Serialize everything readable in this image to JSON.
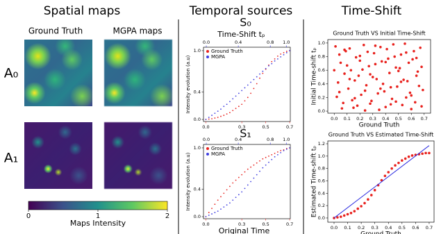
{
  "sections": {
    "spatial": "Spatial maps",
    "temporal": "Temporal sources",
    "timeshift": "Time-Shift"
  },
  "spatial_maps": {
    "columns": [
      "Ground Truth",
      "MGPA maps"
    ],
    "rows": [
      "A₀",
      "A₁"
    ]
  },
  "chart_data": [
    {
      "type": "colorbar",
      "xlabel": "Maps Intensity",
      "xlim": [
        0,
        2
      ],
      "xticks": [
        0,
        1,
        2
      ],
      "colors": [
        "#440154",
        "#3b528b",
        "#21918c",
        "#5ec962",
        "#fde725"
      ]
    },
    {
      "type": "line",
      "title": "S₀",
      "x2label": "Time-Shift tₚ",
      "ylabel": "Intensity evolution (a.u)",
      "legend": "upper left",
      "xcolor": "#e8211d",
      "x2color": "#2b2be0",
      "x": [
        0,
        0.025,
        0.05,
        0.075,
        0.1,
        0.125,
        0.15,
        0.175,
        0.2,
        0.225,
        0.25,
        0.275,
        0.3,
        0.325,
        0.35,
        0.375,
        0.4,
        0.425,
        0.45,
        0.475,
        0.5,
        0.525,
        0.55,
        0.575,
        0.6,
        0.625,
        0.65,
        0.675,
        0.7
      ],
      "xlim": [
        -0.02,
        0.705
      ],
      "xticks": [
        {
          "value": 0,
          "label": "0.0"
        },
        0.3,
        0.5,
        0.7
      ],
      "x2lim": [
        -0.035,
        1.05
      ],
      "x2ticks": [
        {
          "value": 0,
          "label": "0.0"
        },
        0.4,
        0.8,
        {
          "value": 1,
          "label": "1.0"
        }
      ],
      "ylim": [
        -0.03,
        1.05
      ],
      "yticks": [
        {
          "value": 0,
          "label": "0.0"
        },
        0.4,
        {
          "value": 1,
          "label": "1.0"
        }
      ],
      "series": [
        {
          "name": "Ground Truth",
          "color": "#e8211d",
          "style": "dots",
          "values": [
            0,
            0.005,
            0.01,
            0.02,
            0.03,
            0.045,
            0.06,
            0.08,
            0.1,
            0.13,
            0.16,
            0.19,
            0.22,
            0.27,
            0.32,
            0.38,
            0.45,
            0.52,
            0.6,
            0.67,
            0.73,
            0.79,
            0.84,
            0.88,
            0.92,
            0.95,
            0.97,
            0.99,
            1.0
          ]
        },
        {
          "name": "MGPA",
          "color": "#3d3de0",
          "style": "dots",
          "values": [
            0,
            0.03,
            0.06,
            0.09,
            0.12,
            0.15,
            0.19,
            0.22,
            0.26,
            0.3,
            0.34,
            0.38,
            0.42,
            0.46,
            0.5,
            0.54,
            0.58,
            0.62,
            0.66,
            0.7,
            0.74,
            0.78,
            0.81,
            0.85,
            0.88,
            0.91,
            0.94,
            0.97,
            1.0
          ]
        }
      ]
    },
    {
      "type": "line",
      "title": "S₁",
      "xlabel": "Original Time",
      "ylabel": "Intensity evolution (a.u)",
      "legend": "upper left",
      "xcolor": "#e8211d",
      "x2color": "#2b2be0",
      "x": [
        0,
        0.025,
        0.05,
        0.075,
        0.1,
        0.125,
        0.15,
        0.175,
        0.2,
        0.225,
        0.25,
        0.275,
        0.3,
        0.325,
        0.35,
        0.375,
        0.4,
        0.425,
        0.45,
        0.475,
        0.5,
        0.525,
        0.55,
        0.575,
        0.6,
        0.625,
        0.65,
        0.675,
        0.7
      ],
      "xlim": [
        -0.02,
        0.705
      ],
      "xticks": [
        {
          "value": 0,
          "label": "0.0"
        },
        0.3,
        0.5,
        0.7
      ],
      "x2lim": [
        -0.035,
        1.05
      ],
      "x2ticks": [
        {
          "value": 0,
          "label": "0.0"
        },
        0.4,
        0.8,
        {
          "value": 1,
          "label": "1.0"
        }
      ],
      "ylim": [
        -0.03,
        1.05
      ],
      "yticks": [
        {
          "value": 0,
          "label": "0.0"
        },
        0.4,
        {
          "value": 1,
          "label": "1.0"
        }
      ],
      "series": [
        {
          "name": "Ground Truth",
          "color": "#e8211d",
          "style": "dots",
          "values": [
            0,
            0.06,
            0.12,
            0.18,
            0.24,
            0.29,
            0.34,
            0.39,
            0.44,
            0.49,
            0.53,
            0.57,
            0.61,
            0.65,
            0.69,
            0.72,
            0.75,
            0.78,
            0.81,
            0.84,
            0.86,
            0.88,
            0.9,
            0.92,
            0.94,
            0.96,
            0.97,
            0.99,
            1.0
          ]
        },
        {
          "name": "MGPA",
          "color": "#3d3de0",
          "style": "dots",
          "values": [
            0,
            0.02,
            0.04,
            0.06,
            0.08,
            0.11,
            0.14,
            0.17,
            0.2,
            0.24,
            0.28,
            0.32,
            0.36,
            0.41,
            0.46,
            0.51,
            0.56,
            0.61,
            0.66,
            0.71,
            0.75,
            0.79,
            0.83,
            0.87,
            0.9,
            0.93,
            0.96,
            0.98,
            1.0
          ]
        }
      ]
    },
    {
      "type": "scatter",
      "title": "Ground Truth VS Initial Time-Shift",
      "xlabel": "Ground Truth",
      "ylabel": "Initial Time-shift tₚ",
      "x": [
        0.01,
        0.03,
        0.05,
        0.07,
        0.09,
        0.11,
        0.13,
        0.15,
        0.17,
        0.19,
        0.21,
        0.23,
        0.25,
        0.27,
        0.29,
        0.31,
        0.33,
        0.35,
        0.37,
        0.39,
        0.41,
        0.43,
        0.45,
        0.47,
        0.49,
        0.51,
        0.53,
        0.55,
        0.57,
        0.59,
        0.61,
        0.63,
        0.65,
        0.67,
        0.69,
        0.02,
        0.04,
        0.06,
        0.08,
        0.1,
        0.12,
        0.14,
        0.16,
        0.18,
        0.2,
        0.22,
        0.24,
        0.26,
        0.28,
        0.3,
        0.32,
        0.34,
        0.36,
        0.38,
        0.4,
        0.42,
        0.44,
        0.46,
        0.48,
        0.5,
        0.52,
        0.54,
        0.56,
        0.58,
        0.6,
        0.62,
        0.64,
        0.66,
        0.68,
        0,
        0.04,
        0.08,
        0.12,
        0.16,
        0.2,
        0.24,
        0.28,
        0.32,
        0.36,
        0.4,
        0.44,
        0.48,
        0.52,
        0.56,
        0.6,
        0.64,
        0.68
      ],
      "xlim": [
        -0.05,
        0.75
      ],
      "xticks": [
        {
          "value": 0,
          "label": "0.0"
        },
        0.1,
        0.2,
        0.3,
        0.4,
        0.5,
        0.6,
        0.7
      ],
      "ylim": [
        -0.03,
        1.05
      ],
      "yticks": [
        {
          "value": 0,
          "label": "0.0"
        },
        0.2,
        0.4,
        0.6,
        0.8,
        {
          "value": 1,
          "label": "1.0"
        }
      ],
      "series": [
        {
          "color": "#e8211d",
          "style": "dots",
          "values": [
            0.95,
            0.42,
            0.71,
            0.12,
            0.88,
            0.33,
            0.6,
            0.05,
            0.79,
            0.52,
            0.24,
            0.97,
            0.38,
            0.66,
            0.15,
            0.85,
            0.47,
            0.02,
            0.73,
            0.29,
            0.91,
            0.56,
            0.18,
            0.8,
            0.36,
            0.63,
            0.09,
            0.99,
            0.44,
            0.27,
            0.76,
            0.13,
            0.58,
            0.93,
            0.31,
            0.21,
            0.83,
            0.04,
            0.55,
            0.67,
            0.92,
            0.16,
            0.45,
            0.08,
            0.74,
            0.61,
            0.3,
            0.87,
            0.11,
            0.5,
            0.69,
            0.26,
            0.94,
            0.4,
            0.06,
            0.77,
            0.35,
            0.98,
            0.14,
            0.59,
            0.83,
            0.46,
            0.2,
            0.71,
            0.03,
            0.88,
            0.52,
            0.37,
            0.65,
            0.6,
            0.28,
            0.9,
            0.47,
            0.19,
            0.81,
            0.01,
            0.54,
            0.96,
            0.33,
            0.72,
            0.1,
            0.64,
            0.43,
            0.86,
            0.23,
            0.78,
            0.07
          ]
        }
      ]
    },
    {
      "type": "scatter",
      "title": "Ground Truth VS Estimated Time-Shift",
      "xlabel": "Ground Truth",
      "ylabel": "Estimated Time-shift tₚ",
      "x": [
        0,
        0.025,
        0.05,
        0.075,
        0.1,
        0.125,
        0.15,
        0.175,
        0.2,
        0.225,
        0.25,
        0.275,
        0.3,
        0.325,
        0.35,
        0.375,
        0.4,
        0.425,
        0.45,
        0.475,
        0.5,
        0.525,
        0.55,
        0.575,
        0.6,
        0.625,
        0.65,
        0.675,
        0.7
      ],
      "xlim": [
        -0.046,
        0.736
      ],
      "xticks": [
        {
          "value": 0,
          "label": "0.0"
        },
        0.1,
        0.2,
        0.3,
        0.4,
        0.5,
        0.6,
        0.7
      ],
      "ylim": [
        -0.068,
        1.245
      ],
      "yticks": [
        {
          "value": 0,
          "label": "0.0"
        },
        0.2,
        0.4,
        0.6,
        0.8,
        {
          "value": 1,
          "label": "1.0"
        },
        1.2
      ],
      "series": [
        {
          "color": "#e8211d",
          "style": "dots",
          "values": [
            0,
            0.01,
            0.02,
            0.04,
            0.06,
            0.08,
            0.11,
            0.15,
            0.19,
            0.24,
            0.3,
            0.37,
            0.45,
            0.53,
            0.61,
            0.68,
            0.74,
            0.8,
            0.85,
            0.89,
            0.93,
            0.96,
            0.99,
            1.01,
            1.02,
            1.03,
            1.04,
            1.05,
            1.05
          ]
        },
        {
          "color": "#2b2be0",
          "style": "line",
          "x": [
            0,
            0.7
          ],
          "values": [
            0,
            1.17
          ]
        }
      ]
    }
  ]
}
